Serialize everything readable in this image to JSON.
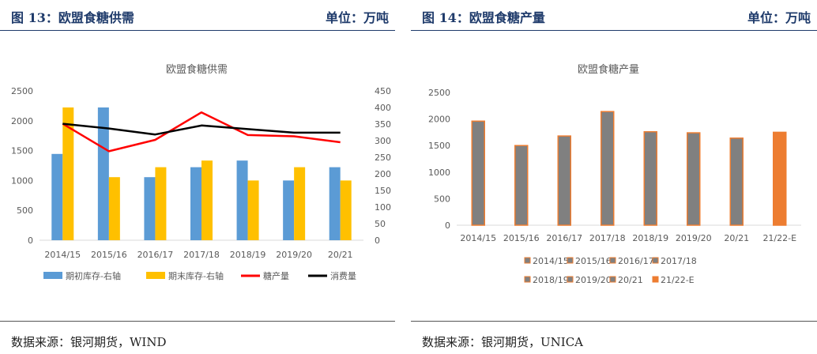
{
  "left": {
    "title": "图 13：欧盟食糖供需",
    "unit": "单位：万吨",
    "source": "数据来源：银河期货，WIND",
    "chart_data": {
      "type": "bar+line",
      "title": "欧盟食糖供需",
      "categories": [
        "2014/15",
        "2015/16",
        "2016/17",
        "2017/18",
        "2018/19",
        "2019/20",
        "20/21"
      ],
      "ylim": [
        0,
        2500
      ],
      "yticks": [
        "0",
        "500",
        "1000",
        "1500",
        "2000",
        "2500"
      ],
      "y2lim": [
        0,
        450
      ],
      "y2ticks": [
        "0",
        "50",
        "100",
        "150",
        "200",
        "250",
        "300",
        "350",
        "400",
        "450"
      ],
      "series": [
        {
          "name": "期初库存-右轴",
          "kind": "bar",
          "axis": "right",
          "color": "#5b9bd5",
          "values": [
            260,
            400,
            190,
            220,
            240,
            180,
            220
          ]
        },
        {
          "name": "期末库存-右轴",
          "kind": "bar",
          "axis": "right",
          "color": "#ffc000",
          "values": [
            400,
            190,
            220,
            240,
            180,
            220,
            180
          ]
        },
        {
          "name": "糖产量",
          "kind": "line",
          "axis": "left",
          "color": "#ff0000",
          "values": [
            1950,
            1490,
            1680,
            2140,
            1760,
            1740,
            1640
          ]
        },
        {
          "name": "消费量",
          "kind": "line",
          "axis": "left",
          "color": "#000000",
          "values": [
            1950,
            1870,
            1770,
            1920,
            1860,
            1800,
            1800
          ]
        }
      ]
    }
  },
  "right": {
    "title": "图 14：欧盟食糖产量",
    "unit": "单位：万吨",
    "source": "数据来源：银河期货，UNICA",
    "chart_data": {
      "type": "bar",
      "title": "欧盟食糖产量",
      "categories": [
        "2014/15",
        "2015/16",
        "2016/17",
        "2017/18",
        "2018/19",
        "2019/20",
        "20/21",
        "21/22-E"
      ],
      "values": [
        1960,
        1500,
        1680,
        2140,
        1760,
        1740,
        1640,
        1750
      ],
      "ylim": [
        0,
        2500
      ],
      "yticks": [
        "0",
        "500",
        "1000",
        "1500",
        "2000",
        "2500"
      ],
      "bar_color": "#808080",
      "bar_border_color": "#ed7d31",
      "highlight_color": "#ed7d31",
      "highlight_index": 7,
      "legend": [
        "2014/15",
        "2015/16",
        "2016/17",
        "2017/18",
        "2018/19",
        "2019/20",
        "20/21",
        "21/22-E"
      ]
    }
  }
}
